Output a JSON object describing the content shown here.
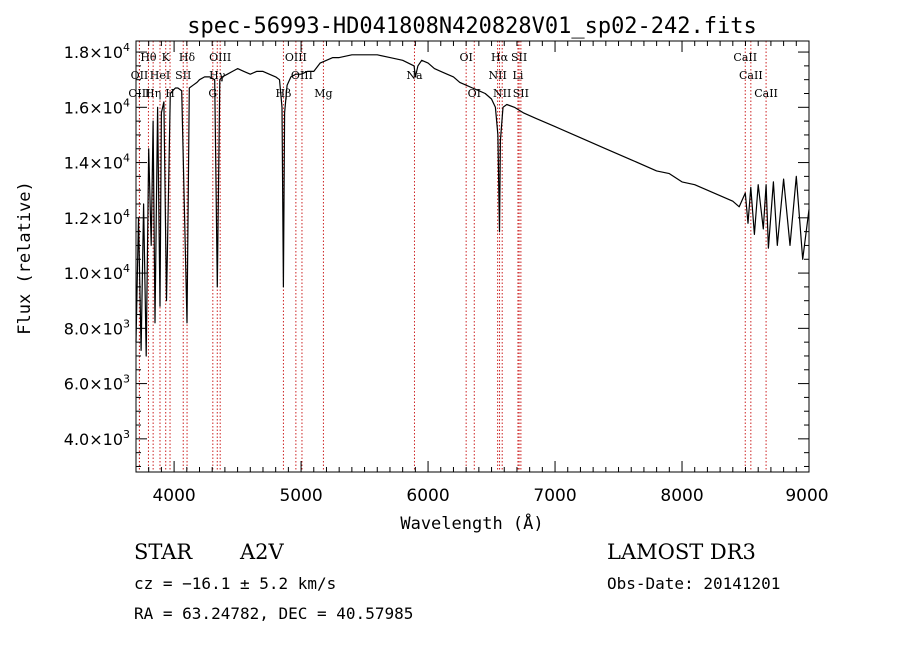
{
  "chart_data": {
    "type": "line",
    "title": "spec-56993-HD041808N420828V01_sp02-242.fits",
    "xlabel": "Wavelength (Å)",
    "ylabel": "Flux (relative)",
    "xlim": [
      3700,
      9000
    ],
    "ylim": [
      2800,
      18400
    ],
    "x_ticks": [
      4000,
      5000,
      6000,
      7000,
      8000,
      9000
    ],
    "x_tick_labels": [
      "4000",
      "5000",
      "6000",
      "7000",
      "8000",
      "9000"
    ],
    "y_ticks": [
      4000,
      6000,
      8000,
      10000,
      12000,
      14000,
      16000,
      18000
    ],
    "y_tick_labels": [
      {
        "mant": "4.0",
        "exp": "3"
      },
      {
        "mant": "6.0",
        "exp": "3"
      },
      {
        "mant": "8.0",
        "exp": "3"
      },
      {
        "mant": "1.0",
        "exp": "4"
      },
      {
        "mant": "1.2",
        "exp": "4"
      },
      {
        "mant": "1.4",
        "exp": "4"
      },
      {
        "mant": "1.6",
        "exp": "4"
      },
      {
        "mant": "1.8",
        "exp": "4"
      }
    ],
    "series": [
      {
        "name": "spectrum",
        "color": "#000000",
        "x": [
          3700,
          3720,
          3740,
          3760,
          3780,
          3800,
          3820,
          3835,
          3850,
          3870,
          3889,
          3900,
          3920,
          3940,
          3970,
          3990,
          4010,
          4030,
          4060,
          4102,
          4120,
          4150,
          4180,
          4200,
          4240,
          4280,
          4320,
          4340,
          4360,
          4380,
          4420,
          4460,
          4500,
          4550,
          4600,
          4650,
          4700,
          4750,
          4800,
          4830,
          4850,
          4861,
          4870,
          4890,
          4920,
          4960,
          5000,
          5050,
          5100,
          5150,
          5200,
          5250,
          5300,
          5400,
          5500,
          5600,
          5700,
          5800,
          5890,
          5900,
          5920,
          5950,
          6000,
          6050,
          6100,
          6150,
          6200,
          6250,
          6300,
          6350,
          6400,
          6450,
          6500,
          6530,
          6550,
          6563,
          6570,
          6590,
          6620,
          6680,
          6750,
          6850,
          7000,
          7200,
          7400,
          7600,
          7800,
          7900,
          8000,
          8100,
          8200,
          8300,
          8400,
          8450,
          8498,
          8520,
          8542,
          8570,
          8600,
          8640,
          8662,
          8680,
          8720,
          8750,
          8800,
          8850,
          8900,
          8950,
          9000
        ],
        "y": [
          7500,
          12000,
          7200,
          12500,
          7000,
          14500,
          11000,
          15500,
          8200,
          16000,
          8800,
          15800,
          16200,
          9000,
          16500,
          16600,
          16700,
          16700,
          16600,
          8200,
          16700,
          16800,
          16900,
          17000,
          17100,
          17100,
          17000,
          9500,
          17000,
          17100,
          17200,
          17300,
          17400,
          17300,
          17200,
          17300,
          17300,
          17200,
          17100,
          17000,
          16000,
          9500,
          15800,
          16800,
          17100,
          17200,
          17200,
          17300,
          17300,
          17600,
          17700,
          17800,
          17800,
          17900,
          17900,
          17900,
          17800,
          17700,
          17500,
          17100,
          17500,
          17700,
          17600,
          17400,
          17300,
          17200,
          17100,
          16900,
          16800,
          16700,
          16600,
          16500,
          16300,
          16000,
          15000,
          11500,
          14800,
          16000,
          16100,
          16000,
          15800,
          15600,
          15300,
          14900,
          14500,
          14100,
          13700,
          13600,
          13300,
          13200,
          13000,
          12800,
          12600,
          12400,
          12900,
          11800,
          13100,
          11400,
          13200,
          11600,
          13200,
          10900,
          13300,
          11000,
          13400,
          11000,
          13500,
          10500,
          12300
        ]
      }
    ],
    "lines": [
      {
        "label": "Hθ",
        "x": 3798,
        "row": 1
      },
      {
        "label": "OII",
        "x": 3727,
        "row": 2
      },
      {
        "label": "OIII",
        "x": 3727,
        "row": 3
      },
      {
        "label": "K",
        "x": 3934,
        "row": 1
      },
      {
        "label": "HeI",
        "x": 3889,
        "row": 2
      },
      {
        "label": "Hη",
        "x": 3835,
        "row": 3
      },
      {
        "label": "Hδ",
        "x": 4102,
        "row": 1
      },
      {
        "label": "SII",
        "x": 4072,
        "row": 2
      },
      {
        "label": "H",
        "x": 3968,
        "row": 3
      },
      {
        "label": "OIII",
        "x": 4363,
        "row": 1
      },
      {
        "label": "Hγ",
        "x": 4340,
        "row": 2
      },
      {
        "label": "G",
        "x": 4305,
        "row": 3
      },
      {
        "label": "Hβ",
        "x": 4861,
        "row": 3
      },
      {
        "label": "OIII",
        "x": 4959,
        "row": 1
      },
      {
        "label": "OIII",
        "x": 5007,
        "row": 2
      },
      {
        "label": "Mg",
        "x": 5176,
        "row": 3
      },
      {
        "label": "Na",
        "x": 5893,
        "row": 2
      },
      {
        "label": "OI",
        "x": 6300,
        "row": 1
      },
      {
        "label": "OI",
        "x": 6364,
        "row": 3
      },
      {
        "label": "Hα",
        "x": 6563,
        "row": 1
      },
      {
        "label": "SII",
        "x": 6717,
        "row": 1
      },
      {
        "label": "NII",
        "x": 6548,
        "row": 2
      },
      {
        "label": "Li",
        "x": 6708,
        "row": 2
      },
      {
        "label": "NII",
        "x": 6584,
        "row": 3
      },
      {
        "label": "SII",
        "x": 6731,
        "row": 3
      },
      {
        "label": "CaII",
        "x": 8498,
        "row": 1
      },
      {
        "label": "CaII",
        "x": 8542,
        "row": 2
      },
      {
        "label": "CaII",
        "x": 8662,
        "row": 3
      }
    ]
  },
  "info": {
    "object_type": "STAR",
    "spectral_class": "A2V",
    "survey": "LAMOST DR3",
    "redshift_text": "cz = −16.1 ± 5.2 km/s",
    "obs_date_text": "Obs-Date: 20141201",
    "coords_text": "RA =  63.24782, DEC =  40.57985"
  },
  "colors": {
    "line_marker": "#cc2222",
    "spectrum": "#000000",
    "axes": "#000000"
  }
}
